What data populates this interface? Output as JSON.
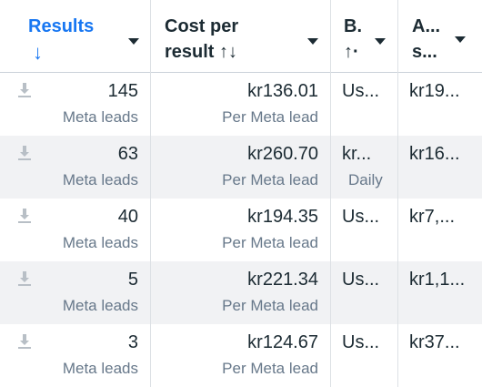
{
  "columns": {
    "results": {
      "label": "Results",
      "sort_icon": "arrow-down-icon",
      "sort_glyph": "↓"
    },
    "cost_per_result": {
      "label_line1": "Cost per",
      "label_line2": "result ↑↓"
    },
    "b": {
      "label_line1": "B.",
      "label_line2": "↑·"
    },
    "a": {
      "label_line1": "A...",
      "label_line2": "s..."
    }
  },
  "rows": [
    {
      "results": "145",
      "results_unit": "Meta leads",
      "cost": "kr136.01",
      "cost_unit": "Per Meta lead",
      "b": "Us...",
      "b_sub": "",
      "a": "kr19..."
    },
    {
      "results": "63",
      "results_unit": "Meta leads",
      "cost": "kr260.70",
      "cost_unit": "Per Meta lead",
      "b": "kr...",
      "b_sub": "Daily",
      "a": "kr16..."
    },
    {
      "results": "40",
      "results_unit": "Meta leads",
      "cost": "kr194.35",
      "cost_unit": "Per Meta lead",
      "b": "Us...",
      "b_sub": "",
      "a": "kr7,..."
    },
    {
      "results": "5",
      "results_unit": "Meta leads",
      "cost": "kr221.34",
      "cost_unit": "Per Meta lead",
      "b": "Us...",
      "b_sub": "",
      "a": "kr1,1..."
    },
    {
      "results": "3",
      "results_unit": "Meta leads",
      "cost": "kr124.67",
      "cost_unit": "Per Meta lead",
      "b": "Us...",
      "b_sub": "",
      "a": "kr37..."
    }
  ],
  "colors": {
    "accent": "#1877f2",
    "text": "#1c2b33",
    "muted": "#67788a",
    "row_alt": "#f1f2f4"
  },
  "icons": {
    "row_icon": "download-icon",
    "header_menu": "caret-down-icon"
  }
}
